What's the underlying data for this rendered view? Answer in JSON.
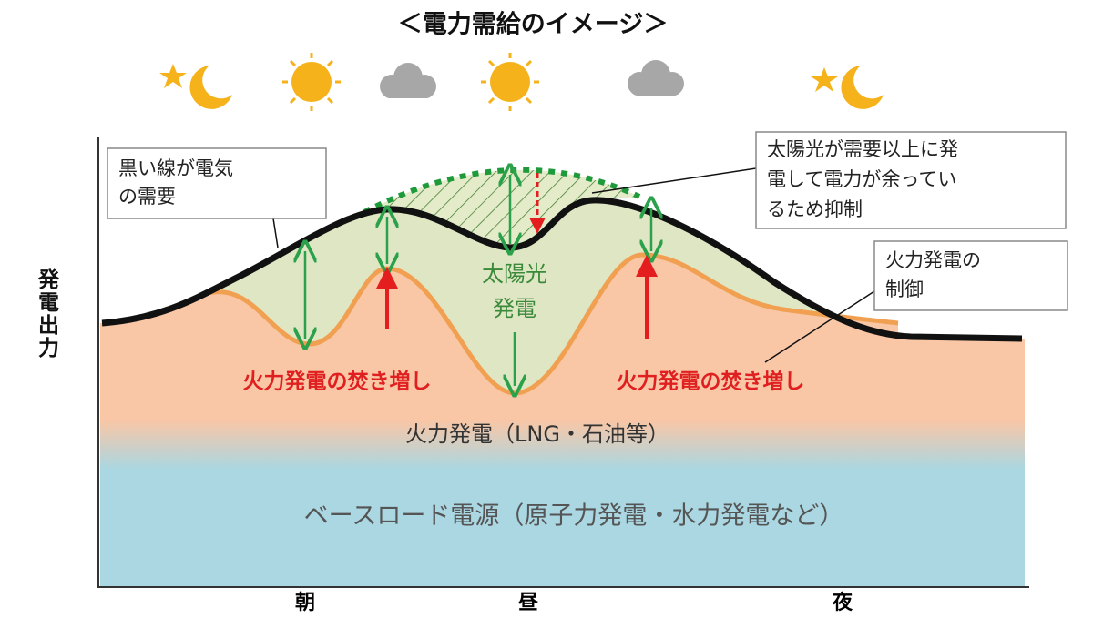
{
  "title": "＜電力需給のイメージ＞",
  "y_axis_label": "発電出力",
  "x_labels": [
    "朝",
    "昼",
    "夜"
  ],
  "callouts": {
    "demand": [
      "黒い線が電気",
      "の需要"
    ],
    "surplus": [
      "太陽光が需要以上に発",
      "電して電力が余ってい",
      "るため抑制"
    ],
    "thermal_control": [
      "火力発電の",
      "制御"
    ]
  },
  "regions": {
    "solar": [
      "太陽光",
      "発電"
    ],
    "thermal_increase": [
      "火力発電の焚き増し",
      "火力発電の焚き増し"
    ],
    "thermal": "火力発電（LNG・石油等）",
    "baseload": "ベースロード電源（原子力発電・水力発電など）"
  }
}
